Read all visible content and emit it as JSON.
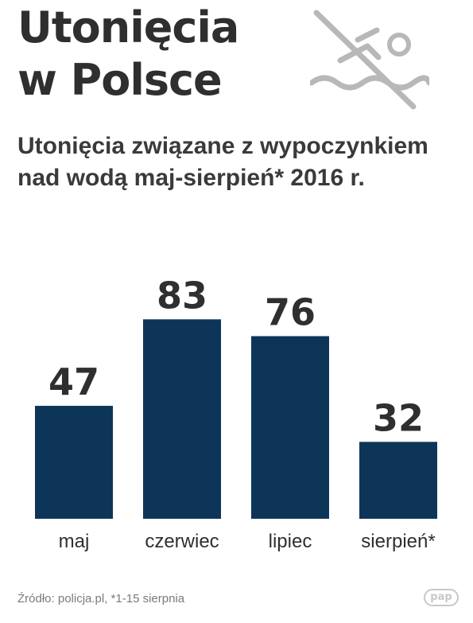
{
  "header": {
    "title_line1": "Utonięcia",
    "title_line2": "w Polsce",
    "subtitle_line1": "Utonięcia związane z wypoczynkiem",
    "subtitle_line2": "nad wodą maj-sierpień* 2016 r."
  },
  "icon": "no-swimming-icon",
  "chart_data": {
    "type": "bar",
    "categories": [
      "maj",
      "czerwiec",
      "lipiec",
      "sierpień*"
    ],
    "values": [
      47,
      83,
      76,
      32
    ],
    "title": "",
    "xlabel": "",
    "ylabel": "",
    "ylim": [
      0,
      100
    ],
    "grid": false,
    "bar_color": "#0d3558",
    "value_label_color": "#2f2f2f"
  },
  "footer": {
    "source": "Źródło: policja.pl, *1-15 sierpnia",
    "logo": "pap"
  }
}
